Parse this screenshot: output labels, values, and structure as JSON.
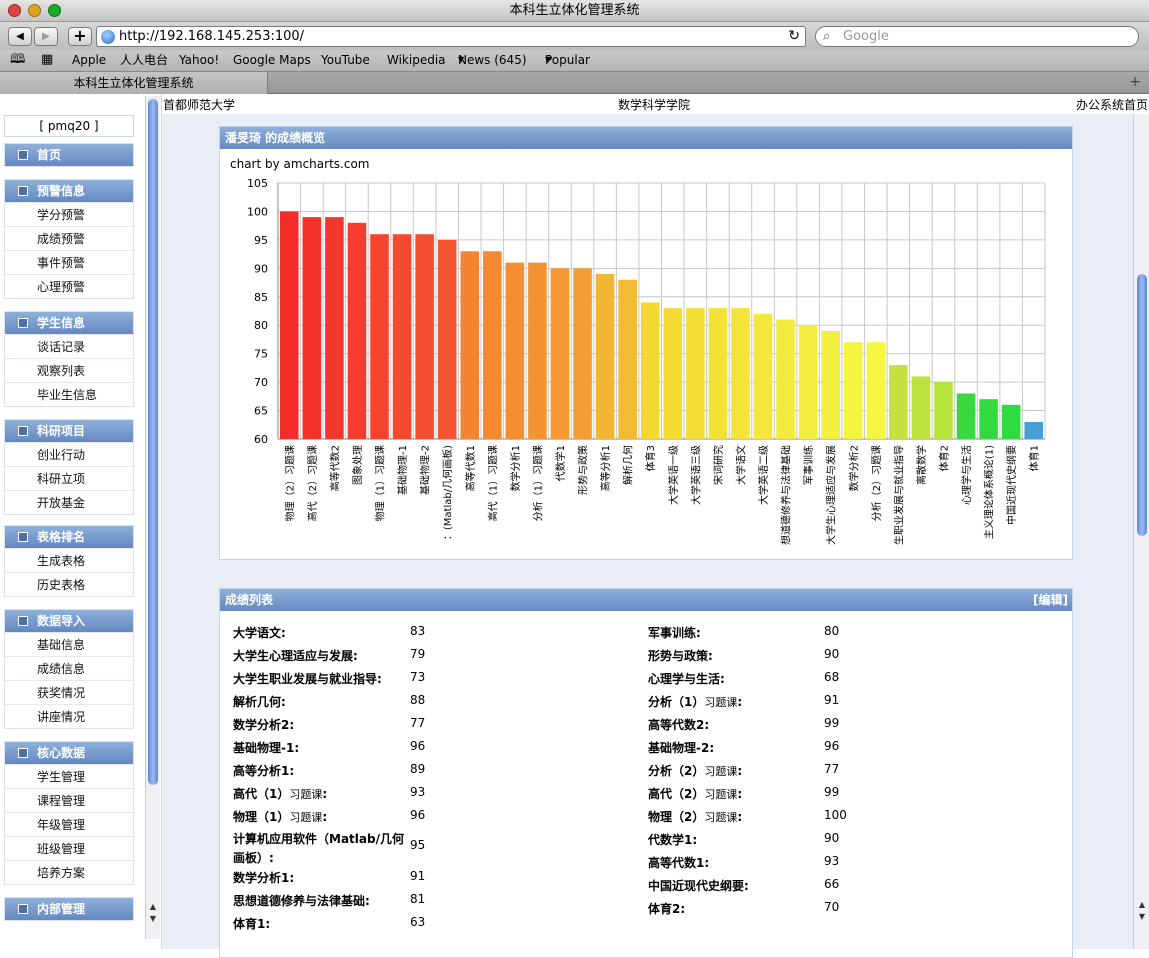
{
  "window": {
    "title": "本科生立体化管理系统"
  },
  "browser": {
    "url": "http://192.168.145.253:100/",
    "search_placeholder": "Google",
    "bookmarks": [
      "Apple",
      "人人电台",
      "Yahoo!",
      "Google Maps",
      "YouTube",
      "Wikipedia",
      "News (645)",
      "Popular"
    ],
    "tab_title": "本科生立体化管理系统"
  },
  "header": {
    "left": "首都师范大学",
    "center": "数学科学学院",
    "right": "办公系统首页"
  },
  "sidebar": {
    "user": "[ pmq20 ]",
    "groups": [
      {
        "title": "首页",
        "items": []
      },
      {
        "title": "预警信息",
        "items": [
          "学分预警",
          "成绩预警",
          "事件预警",
          "心理预警"
        ]
      },
      {
        "title": "学生信息",
        "items": [
          "谈话记录",
          "观察列表",
          "毕业生信息"
        ]
      },
      {
        "title": "科研项目",
        "items": [
          "创业行动",
          "科研立项",
          "开放基金"
        ]
      },
      {
        "title": "表格排名",
        "items": [
          "生成表格",
          "历史表格"
        ]
      },
      {
        "title": "数据导入",
        "items": [
          "基础信息",
          "成绩信息",
          "获奖情况",
          "讲座情况"
        ]
      },
      {
        "title": "核心数据",
        "items": [
          "学生管理",
          "课程管理",
          "年级管理",
          "班级管理",
          "培养方案"
        ]
      },
      {
        "title": "内部管理",
        "items": []
      }
    ]
  },
  "overview": {
    "title": "潘旻琦 的成绩概览",
    "credit": "chart by amcharts.com"
  },
  "chart_data": {
    "type": "bar",
    "title": "",
    "xlabel": "",
    "ylabel": "",
    "ylim": [
      60,
      105
    ],
    "yticks": [
      60,
      65,
      70,
      75,
      80,
      85,
      90,
      95,
      100,
      105
    ],
    "grid": true,
    "categories": [
      "物理（2）习题课",
      "高代（2）习题课",
      "高等代数2",
      "图象处理",
      "物理（1）习题课",
      "基础物理-1",
      "基础物理-2",
      "：(Matlab/几何画板)",
      "高等代数1",
      "高代（1）习题课",
      "数学分析1",
      "分析（1）习题课",
      "代数学1",
      "形势与政策",
      "高等分析1",
      "解析几何",
      "体育3",
      "大学英语一级",
      "大学英语三级",
      "宋词研究",
      "大学语文",
      "大学英语二级",
      "想道德修养与法律基础",
      "军事训练",
      "大学生心理适应与发展",
      "数学分析2",
      "分析（2）习题课",
      "生职业发展与就业指导",
      "离散数学",
      "体育2",
      "心理学与生活",
      "主义理论体系概论(1)",
      "中国近现代史纲要",
      "体育1"
    ],
    "values": [
      100,
      99,
      99,
      98,
      96,
      96,
      96,
      95,
      93,
      93,
      91,
      91,
      90,
      90,
      89,
      88,
      84,
      83,
      83,
      83,
      83,
      82,
      81,
      80,
      79,
      77,
      77,
      73,
      71,
      70,
      68,
      67,
      66,
      63
    ],
    "colors": [
      "#f42c2a",
      "#f4322b",
      "#f4372c",
      "#f43d2d",
      "#f4432e",
      "#f4482f",
      "#f44e30",
      "#f45431",
      "#f48432",
      "#f48932",
      "#f48e32",
      "#f49332",
      "#f49832",
      "#f49d32",
      "#f4b532",
      "#f4ba32",
      "#f4d832",
      "#f4db34",
      "#f4de36",
      "#f4e138",
      "#f4e43a",
      "#f4e73c",
      "#f4ea3e",
      "#f4ed3f",
      "#f4f03f",
      "#f4f33f",
      "#f4f63f",
      "#c6e13e",
      "#bee23e",
      "#b6e33e",
      "#38d83f",
      "#34d940",
      "#30da41",
      "#4a9ed8"
    ]
  },
  "grades": {
    "title": "成绩列表",
    "edit": "[编辑]",
    "left": [
      {
        "name": "大学语文:",
        "score": "83"
      },
      {
        "name": "大学生心理适应与发展:",
        "score": "79"
      },
      {
        "name": "大学生职业发展与就业指导:",
        "score": "73"
      },
      {
        "name": "解析几何:",
        "score": "88"
      },
      {
        "name": "数学分析2:",
        "score": "77"
      },
      {
        "name": "基础物理-1:",
        "score": "96"
      },
      {
        "name": "高等分析1:",
        "score": "89"
      },
      {
        "name": "高代（1）",
        "sub": "习题课",
        "suffix": ":",
        "score": "93"
      },
      {
        "name": "物理（1）",
        "sub": "习题课",
        "suffix": ":",
        "score": "96"
      },
      {
        "name": "计算机应用软件（Matlab/几何",
        "line2": "画板）:",
        "score": "95"
      },
      {
        "name": "数学分析1:",
        "score": "91"
      },
      {
        "name": "思想道德修养与法律基础:",
        "score": "81"
      },
      {
        "name": "体育1:",
        "score": "63"
      }
    ],
    "right": [
      {
        "name": "军事训练:",
        "score": "80"
      },
      {
        "name": "形势与政策:",
        "score": "90"
      },
      {
        "name": "心理学与生活:",
        "score": "68"
      },
      {
        "name": "分析（1）",
        "sub": "习题课",
        "suffix": ":",
        "score": "91"
      },
      {
        "name": "高等代数2:",
        "score": "99"
      },
      {
        "name": "基础物理-2:",
        "score": "96"
      },
      {
        "name": "分析（2）",
        "sub": "习题课",
        "suffix": ":",
        "score": "77"
      },
      {
        "name": "高代（2）",
        "sub": "习题课",
        "suffix": ":",
        "score": "99"
      },
      {
        "name": "物理（2）",
        "sub": "习题课",
        "suffix": ":",
        "score": "100"
      },
      {
        "name": "代数学1:",
        "score": "90"
      },
      {
        "name": "高等代数1:",
        "score": "93"
      },
      {
        "name": "中国近现代史纲要:",
        "score": "66"
      },
      {
        "name": "体育2:",
        "score": "70"
      }
    ]
  }
}
